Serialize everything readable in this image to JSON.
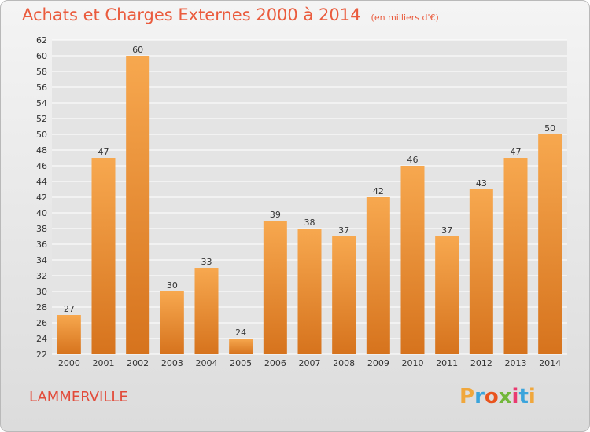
{
  "header": {
    "title": "Achats et Charges Externes 2000 à 2014",
    "unit": "(en milliers d'€)"
  },
  "footer": {
    "commune": "LAMMERVILLE",
    "brand_letters": [
      "P",
      "r",
      "o",
      "x",
      "i",
      "t",
      "i"
    ],
    "brand_colors": [
      "#f0a73c",
      "#3aa4dc",
      "#e9541e",
      "#72b73b",
      "#e93a70",
      "#3aa4dc",
      "#f0a73c"
    ]
  },
  "colors": {
    "bar_top": "#f7a84f",
    "bar_bottom": "#d6731d",
    "grid": "#ffffff",
    "axis_text": "#333333"
  },
  "chart_data": {
    "type": "bar",
    "title": "Achats et Charges Externes 2000 à 2014",
    "subtitle": "(en milliers d'€)",
    "categories": [
      "2000",
      "2001",
      "2002",
      "2003",
      "2004",
      "2005",
      "2006",
      "2007",
      "2008",
      "2009",
      "2010",
      "2011",
      "2012",
      "2013",
      "2014"
    ],
    "values": [
      27,
      47,
      60,
      30,
      33,
      24,
      39,
      38,
      37,
      42,
      46,
      37,
      43,
      47,
      50
    ],
    "ylim": [
      22,
      62
    ],
    "yticks": [
      22,
      24,
      26,
      28,
      30,
      32,
      34,
      36,
      38,
      40,
      42,
      44,
      46,
      48,
      50,
      52,
      54,
      56,
      58,
      60,
      62
    ],
    "data_labels": true,
    "grid": true,
    "legend": "none"
  }
}
